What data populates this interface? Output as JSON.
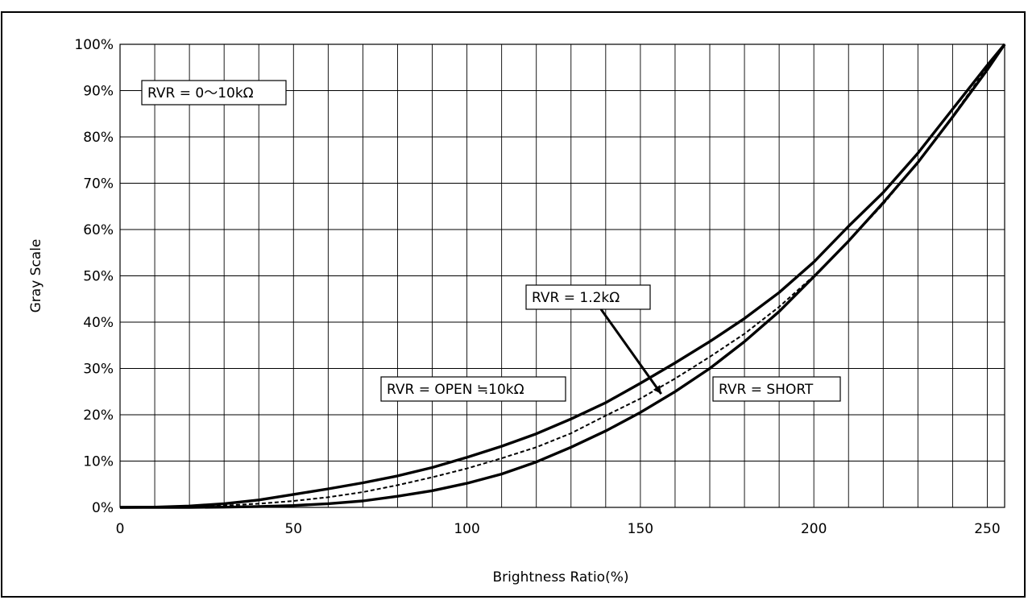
{
  "chart_data": {
    "type": "line",
    "title": "",
    "xlabel": "Brightness Ratio(%)",
    "ylabel": "Gray Scale",
    "xlim": [
      0,
      255
    ],
    "ylim": [
      0,
      100
    ],
    "x_ticks": [
      0,
      50,
      100,
      150,
      200,
      250
    ],
    "x_tick_labels": [
      "0",
      "50",
      "100",
      "150",
      "200",
      "250"
    ],
    "y_ticks": [
      0,
      10,
      20,
      30,
      40,
      50,
      60,
      70,
      80,
      90,
      100
    ],
    "y_tick_labels": [
      "0%",
      "10%",
      "20%",
      "30%",
      "40%",
      "50%",
      "60%",
      "70%",
      "80%",
      "90%",
      "100%"
    ],
    "grid": true,
    "legend": "none",
    "series": [
      {
        "label": "RVR = OPEN ≒10kΩ",
        "line_style": "solid",
        "x": [
          0,
          10,
          20,
          30,
          40,
          50,
          60,
          70,
          80,
          90,
          100,
          110,
          120,
          130,
          140,
          150,
          160,
          170,
          180,
          190,
          200,
          210,
          220,
          230,
          240,
          250,
          255
        ],
        "y": [
          0,
          0.05,
          0.3,
          0.8,
          1.6,
          2.8,
          4.0,
          5.3,
          6.8,
          8.6,
          10.8,
          13.2,
          15.9,
          19.1,
          22.6,
          26.8,
          31.2,
          35.8,
          40.8,
          46.4,
          53.0,
          60.7,
          68.0,
          76.5,
          86.0,
          95.5,
          100
        ]
      },
      {
        "label": "RVR = 1.2kΩ",
        "line_style": "dashed",
        "x": [
          0,
          10,
          20,
          30,
          40,
          50,
          60,
          70,
          80,
          90,
          100,
          110,
          120,
          130,
          140,
          150,
          160,
          170,
          180,
          190,
          200,
          210,
          220,
          230,
          240,
          250,
          255
        ],
        "y": [
          0,
          0.02,
          0.15,
          0.4,
          0.8,
          1.4,
          2.2,
          3.3,
          4.8,
          6.5,
          8.4,
          10.6,
          13.0,
          16.0,
          19.8,
          23.5,
          27.8,
          32.5,
          37.5,
          43.3,
          50.0,
          57.5,
          65.5,
          74.5,
          84.5,
          95.0,
          100
        ]
      },
      {
        "label": "RVR = SHORT",
        "line_style": "solid",
        "x": [
          0,
          10,
          20,
          30,
          40,
          50,
          60,
          70,
          80,
          90,
          100,
          110,
          120,
          130,
          140,
          150,
          160,
          170,
          180,
          190,
          200,
          210,
          220,
          230,
          240,
          250,
          255
        ],
        "y": [
          0,
          0,
          0,
          0.05,
          0.2,
          0.4,
          0.8,
          1.4,
          2.4,
          3.6,
          5.2,
          7.2,
          9.8,
          13.0,
          16.5,
          20.5,
          25.0,
          30.0,
          35.8,
          42.3,
          49.8,
          57.5,
          65.8,
          74.5,
          84.3,
          94.5,
          100
        ]
      }
    ],
    "annotations": [
      {
        "text": "RVR = 0～10kΩ",
        "boxed": true
      },
      {
        "text": "RVR = 1.2kΩ",
        "boxed": true,
        "arrow_to": [
          156,
          24.5
        ]
      },
      {
        "text": "RVR = OPEN ≒10kΩ",
        "boxed": true
      },
      {
        "text": "RVR = SHORT",
        "boxed": true
      }
    ]
  }
}
